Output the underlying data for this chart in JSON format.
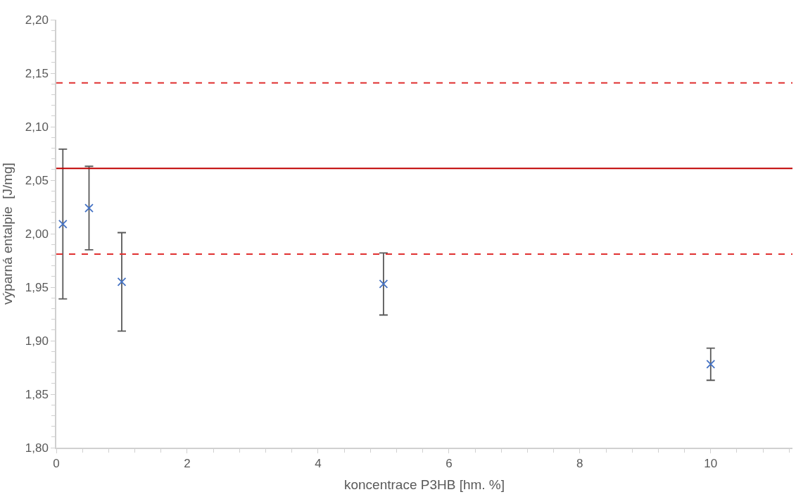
{
  "chart_data": {
    "type": "scatter",
    "xlabel": "koncentrace P3HB [hm. %]",
    "ylabel": "výparná entalpie  [J/mg]",
    "x": [
      0.1,
      0.5,
      1,
      5,
      10
    ],
    "series": [
      {
        "color": "#4472c4",
        "values": [
          2.009,
          2.024,
          1.955,
          1.953,
          1.878
        ],
        "errors": [
          0.07,
          0.039,
          0.046,
          0.029,
          0.015
        ]
      }
    ],
    "marker": "cross",
    "xlim": [
      0,
      11.25
    ],
    "xticks": [
      0,
      2,
      4,
      6,
      8,
      10
    ],
    "ylim": [
      1.8,
      2.2
    ],
    "yticks": [
      {
        "value": 1.8,
        "label": "1,80"
      },
      {
        "value": 1.85,
        "label": "1,85"
      },
      {
        "value": 1.9,
        "label": "1,90"
      },
      {
        "value": 1.95,
        "label": "1,95"
      },
      {
        "value": 2.0,
        "label": "2,00"
      },
      {
        "value": 2.05,
        "label": "2,05"
      },
      {
        "value": 2.1,
        "label": "2,10"
      },
      {
        "value": 2.15,
        "label": "2,15"
      },
      {
        "value": 2.2,
        "label": "2,20"
      }
    ],
    "ref_lines": [
      {
        "axis": "y",
        "value": 2.061,
        "color": "#c00000",
        "line_style": "solid"
      },
      {
        "axis": "y",
        "value": 2.141,
        "color": "#e03030",
        "line_style": "dashed"
      },
      {
        "axis": "y",
        "value": 1.981,
        "color": "#e03030",
        "line_style": "dashed"
      }
    ],
    "tick_labels": [
      "x",
      "y"
    ]
  }
}
